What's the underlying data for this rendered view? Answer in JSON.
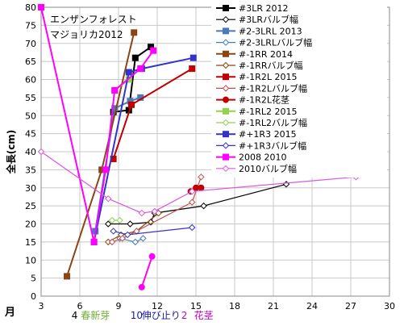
{
  "chart_data": {
    "type": "scatter",
    "title_lines": [
      "エンザンフォレスト",
      "マジョリカ2012"
    ],
    "ylabel": "全長(cm)",
    "xlabel": "月",
    "xlim": [
      3,
      30
    ],
    "ylim": [
      0,
      80
    ],
    "xticks": [
      3,
      6,
      9,
      12,
      15,
      18,
      21,
      24,
      27,
      30
    ],
    "yticks": [
      0,
      5,
      10,
      15,
      20,
      25,
      30,
      35,
      40,
      45,
      50,
      55,
      60,
      65,
      70,
      75,
      80
    ],
    "grid": true,
    "legend_position": "top-right",
    "annotations": [
      {
        "text": "4",
        "color": "#000000",
        "x": 5.6
      },
      {
        "text": "春新芽",
        "color": "#70b030",
        "x": 7.2
      },
      {
        "text": "10",
        "color": "#1a1aa0",
        "x": 10.4
      },
      {
        "text": "伸び止り",
        "color": "#1a1aa0",
        "x": 12.3
      },
      {
        "text": "2",
        "color": "#cc00cc",
        "x": 14.1
      },
      {
        "text": "花茎",
        "color": "#cc00cc",
        "x": 15.6
      }
    ],
    "series": [
      {
        "name": "#3LR 2012",
        "color": "#000000",
        "marker": "square",
        "x": [
          8.6,
          9.8,
          10.3,
          11.5
        ],
        "y": [
          51,
          51.5,
          66,
          69
        ]
      },
      {
        "name": "#3LRバルブ幅",
        "color": "#000000",
        "marker": "diamond",
        "x": [
          8.2,
          9.9,
          11.5,
          11.8,
          15.6,
          22
        ],
        "y": [
          20,
          20,
          20.5,
          23,
          25,
          31
        ]
      },
      {
        "name": "#2-3LRL 2013",
        "color": "#4a7ab8",
        "marker": "square",
        "x": [
          7.2,
          8.7,
          9.9,
          10.7
        ],
        "y": [
          18,
          52,
          54,
          55
        ]
      },
      {
        "name": "#2-3LRLバルブ幅",
        "color": "#4a7ab8",
        "marker": "diamond",
        "x": [
          9.1,
          10.3,
          10.9
        ],
        "y": [
          16,
          15,
          16
        ]
      },
      {
        "name": "#-1RR 2014",
        "color": "#8b4513",
        "marker": "square",
        "x": [
          5,
          7.7,
          10.2
        ],
        "y": [
          5.5,
          35,
          73
        ]
      },
      {
        "name": "#-1RRバルブ幅",
        "color": "#8b4513",
        "marker": "diamond",
        "x": [
          8.2,
          9.2,
          10.4,
          12.1
        ],
        "y": [
          15,
          17,
          18,
          23
        ]
      },
      {
        "name": "#-1R2L 2015",
        "color": "#c00000",
        "marker": "square",
        "x": [
          8.6,
          10,
          14.7
        ],
        "y": [
          38,
          53,
          63
        ]
      },
      {
        "name": "#-1R2Lバルブ幅",
        "color": "#c0504d",
        "marker": "diamond",
        "x": [
          8.5,
          9.3,
          10.4,
          14.7,
          15.4
        ],
        "y": [
          15,
          16,
          18,
          26,
          33
        ]
      },
      {
        "name": "#-1R2L花茎",
        "color": "#c00000",
        "marker": "circle",
        "x": [
          14.6,
          15,
          15.4
        ],
        "y": [
          29,
          30,
          30
        ]
      },
      {
        "name": "#-1RL2 2015",
        "color": "#92d050",
        "marker": "square",
        "x": [
          8.7,
          9.8
        ],
        "y": [
          57,
          60
        ]
      },
      {
        "name": "#-1RL2バルブ幅",
        "color": "#92d050",
        "marker": "diamond",
        "x": [
          8.5,
          9.1
        ],
        "y": [
          21,
          21
        ]
      },
      {
        "name": "#+1R3 2015",
        "color": "#3333cc",
        "marker": "square",
        "x": [
          7.1,
          9.8,
          10.8,
          14.8
        ],
        "y": [
          15,
          62,
          63,
          66
        ]
      },
      {
        "name": "#+1R3バルブ幅",
        "color": "#3333cc",
        "marker": "diamond",
        "x": [
          8.6,
          9.7,
          14.7
        ],
        "y": [
          18,
          17,
          19
        ]
      },
      {
        "name": "2008 2010",
        "color": "#ff00ff",
        "marker": "square",
        "x": [
          3,
          7.1,
          8,
          8.7,
          10.7,
          11.7
        ],
        "y": [
          80,
          15,
          35,
          57,
          63,
          68
        ]
      },
      {
        "name": "2010バルブ幅",
        "color": "#dd55dd",
        "marker": "diamond",
        "x": [
          3,
          8.2,
          10.8,
          11.8,
          14.7,
          27.4
        ],
        "y": [
          40,
          27,
          23,
          23.5,
          29,
          33
        ]
      }
    ],
    "extra_segments": [
      {
        "name": "2008 2010 花茎",
        "color": "#ff00ff",
        "marker": "circle",
        "x": [
          10.8,
          11.6
        ],
        "y": [
          2.5,
          11
        ]
      }
    ]
  }
}
